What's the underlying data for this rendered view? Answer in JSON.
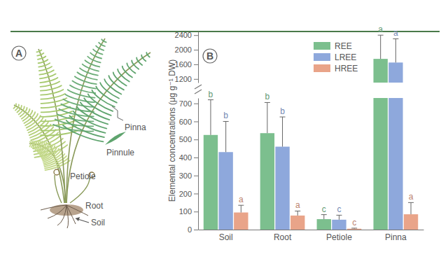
{
  "panel_labels": [
    "A",
    "B"
  ],
  "illustration": {
    "labels": [
      "Pinna",
      "Pinnule",
      "Petiole",
      "Root",
      "Soil"
    ]
  },
  "chart_data": {
    "type": "bar",
    "y_label": "Elemental concentrations (μg g⁻¹ DW)",
    "categories": [
      "Soil",
      "Root",
      "Petiole",
      "Pinna"
    ],
    "y_segments": [
      {
        "ylim": [
          0,
          730
        ],
        "yticks": [
          0,
          100,
          200,
          300,
          400,
          500,
          600,
          700
        ]
      },
      {
        "ylim": [
          1100,
          2500
        ],
        "yticks": [
          1200,
          1600,
          2000,
          2400
        ]
      }
    ],
    "legend": "top-right",
    "series": [
      {
        "name": "REE",
        "color": "#7cbf8e",
        "values": [
          525,
          535,
          58,
          1750
        ],
        "errors": [
          195,
          170,
          25,
          650
        ],
        "letters": [
          "b",
          "b",
          "c",
          "a"
        ]
      },
      {
        "name": "LREE",
        "color": "#8ea8dc",
        "values": [
          430,
          460,
          55,
          1650
        ],
        "errors": [
          170,
          165,
          25,
          650
        ],
        "letters": [
          "b",
          "b",
          "c",
          "a"
        ]
      },
      {
        "name": "HREE",
        "color": "#e9a489",
        "values": [
          95,
          78,
          5,
          85
        ],
        "errors": [
          40,
          25,
          3,
          65
        ],
        "letters": [
          "a",
          "a",
          "c",
          "a"
        ]
      }
    ]
  }
}
